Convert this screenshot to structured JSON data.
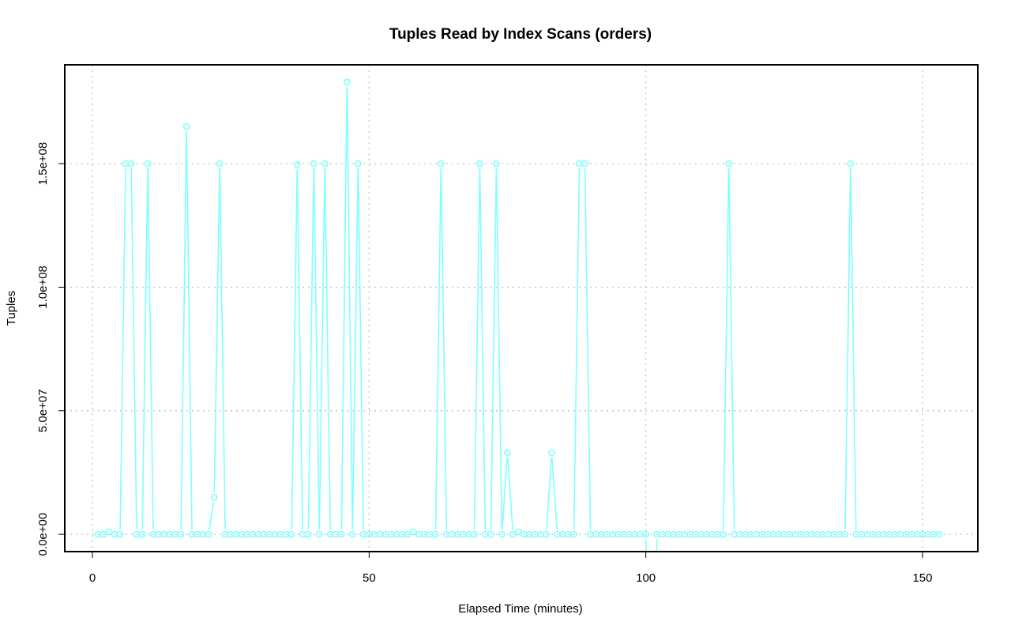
{
  "chart_data": {
    "type": "line",
    "title": "Tuples Read by Index Scans (orders)",
    "xlabel": "Elapsed Time (minutes)",
    "ylabel": "Tuples",
    "xlim": [
      -5,
      160
    ],
    "ylim": [
      -7000000,
      190000000
    ],
    "x_ticks": [
      0,
      50,
      100,
      150
    ],
    "x_tick_labels": [
      "0",
      "50",
      "100",
      "150"
    ],
    "y_ticks": [
      0,
      50000000,
      100000000,
      150000000
    ],
    "y_tick_labels": [
      "0.0e+00",
      "5.0e+07",
      "1.0e+08",
      "1.5e+08"
    ],
    "grid": true,
    "markers": "open-circle",
    "color": "#7fffff",
    "series": [
      {
        "values": [
          [
            1,
            0
          ],
          [
            2,
            0
          ],
          [
            3,
            1000000
          ],
          [
            4,
            0
          ],
          [
            5,
            0
          ],
          [
            6,
            150000000
          ],
          [
            7,
            150000000
          ],
          [
            8,
            0
          ],
          [
            9,
            0
          ],
          [
            10,
            150000000
          ],
          [
            11,
            0
          ],
          [
            12,
            0
          ],
          [
            13,
            0
          ],
          [
            14,
            0
          ],
          [
            15,
            0
          ],
          [
            16,
            0
          ],
          [
            17,
            165000000
          ],
          [
            18,
            0
          ],
          [
            19,
            0
          ],
          [
            20,
            0
          ],
          [
            21,
            0
          ],
          [
            22,
            15000000
          ],
          [
            23,
            150000000
          ],
          [
            24,
            0
          ],
          [
            25,
            0
          ],
          [
            26,
            0
          ],
          [
            27,
            0
          ],
          [
            28,
            0
          ],
          [
            29,
            0
          ],
          [
            30,
            0
          ],
          [
            31,
            0
          ],
          [
            32,
            0
          ],
          [
            33,
            0
          ],
          [
            34,
            0
          ],
          [
            35,
            0
          ],
          [
            36,
            0
          ],
          [
            37,
            149500000
          ],
          [
            38,
            0
          ],
          [
            39,
            0
          ],
          [
            40,
            150000000
          ],
          [
            41,
            0
          ],
          [
            42,
            150000000
          ],
          [
            43,
            0
          ],
          [
            44,
            0
          ],
          [
            45,
            0
          ],
          [
            46,
            183000000
          ],
          [
            47,
            0
          ],
          [
            48,
            150000000
          ],
          [
            49,
            0
          ],
          [
            50,
            0
          ],
          [
            51,
            0
          ],
          [
            52,
            0
          ],
          [
            53,
            0
          ],
          [
            54,
            0
          ],
          [
            55,
            0
          ],
          [
            56,
            0
          ],
          [
            57,
            0
          ],
          [
            58,
            1000000
          ],
          [
            59,
            0
          ],
          [
            60,
            0
          ],
          [
            61,
            0
          ],
          [
            62,
            0
          ],
          [
            63,
            150000000
          ],
          [
            64,
            0
          ],
          [
            65,
            0
          ],
          [
            66,
            0
          ],
          [
            67,
            0
          ],
          [
            68,
            0
          ],
          [
            69,
            0
          ],
          [
            70,
            150000000
          ],
          [
            71,
            0
          ],
          [
            72,
            0
          ],
          [
            73,
            150000000
          ],
          [
            74,
            0
          ],
          [
            75,
            33000000
          ],
          [
            76,
            0
          ],
          [
            77,
            1000000
          ],
          [
            78,
            0
          ],
          [
            79,
            0
          ],
          [
            80,
            0
          ],
          [
            81,
            0
          ],
          [
            82,
            0
          ],
          [
            83,
            33000000
          ],
          [
            84,
            0
          ],
          [
            85,
            0
          ],
          [
            86,
            0
          ],
          [
            87,
            0
          ],
          [
            88,
            150000000
          ],
          [
            89,
            150000000
          ],
          [
            90,
            0
          ],
          [
            91,
            0
          ],
          [
            92,
            0
          ],
          [
            93,
            0
          ],
          [
            94,
            0
          ],
          [
            95,
            0
          ],
          [
            96,
            0
          ],
          [
            97,
            0
          ],
          [
            98,
            0
          ],
          [
            99,
            0
          ],
          [
            100,
            0
          ],
          [
            101,
            null
          ],
          [
            102,
            0
          ],
          [
            103,
            0
          ],
          [
            104,
            0
          ],
          [
            105,
            0
          ],
          [
            106,
            0
          ],
          [
            107,
            0
          ],
          [
            108,
            0
          ],
          [
            109,
            0
          ],
          [
            110,
            0
          ],
          [
            111,
            0
          ],
          [
            112,
            0
          ],
          [
            113,
            0
          ],
          [
            114,
            0
          ],
          [
            115,
            150000000
          ],
          [
            116,
            0
          ],
          [
            117,
            0
          ],
          [
            118,
            0
          ],
          [
            119,
            0
          ],
          [
            120,
            0
          ],
          [
            121,
            0
          ],
          [
            122,
            0
          ],
          [
            123,
            0
          ],
          [
            124,
            0
          ],
          [
            125,
            0
          ],
          [
            126,
            0
          ],
          [
            127,
            0
          ],
          [
            128,
            0
          ],
          [
            129,
            0
          ],
          [
            130,
            0
          ],
          [
            131,
            0
          ],
          [
            132,
            0
          ],
          [
            133,
            0
          ],
          [
            134,
            0
          ],
          [
            135,
            0
          ],
          [
            136,
            0
          ],
          [
            137,
            150000000
          ],
          [
            138,
            0
          ],
          [
            139,
            0
          ],
          [
            140,
            0
          ],
          [
            141,
            0
          ],
          [
            142,
            0
          ],
          [
            143,
            0
          ],
          [
            144,
            0
          ],
          [
            145,
            0
          ],
          [
            146,
            0
          ],
          [
            147,
            0
          ],
          [
            148,
            0
          ],
          [
            149,
            0
          ],
          [
            150,
            0
          ],
          [
            151,
            0
          ],
          [
            152,
            0
          ],
          [
            153,
            0
          ]
        ]
      }
    ]
  }
}
